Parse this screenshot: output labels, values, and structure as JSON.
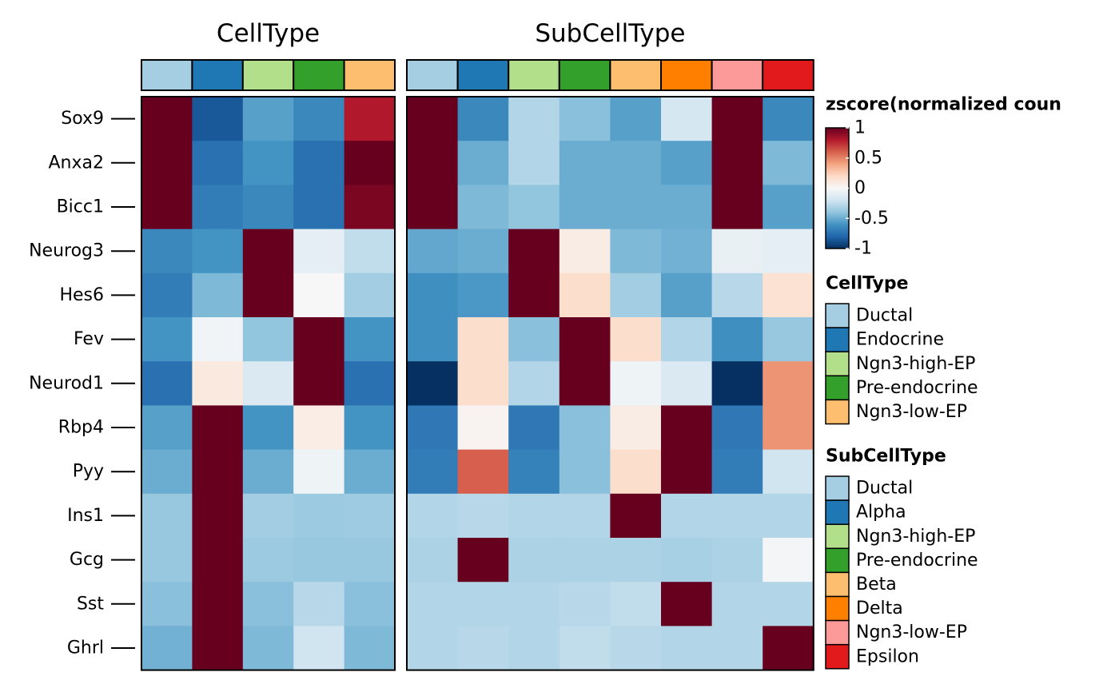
{
  "chart_data": {
    "type": "heatmap",
    "genes": [
      "Sox9",
      "Anxa2",
      "Bicc1",
      "Neurog3",
      "Hes6",
      "Fev",
      "Neurod1",
      "Rbp4",
      "Pyy",
      "Ins1",
      "Gcg",
      "Sst",
      "Ghrl"
    ],
    "value_range": [
      -1,
      1
    ],
    "colormap": [
      "#053061",
      "#2166ac",
      "#4393c3",
      "#92c5de",
      "#d1e5f0",
      "#f7f7f7",
      "#fddbc7",
      "#f4a582",
      "#d6604d",
      "#b2182b",
      "#67001f"
    ],
    "panels": [
      {
        "title": "CellType",
        "columns": [
          "Ductal",
          "Endocrine",
          "Ngn3-high-EP",
          "Pre-endocrine",
          "Ngn3-low-EP"
        ],
        "column_colors": [
          "#a6cee3",
          "#1f78b4",
          "#b2df8a",
          "#33a02c",
          "#fdbf6f"
        ],
        "values": [
          [
            1.0,
            -0.85,
            -0.55,
            -0.65,
            0.8
          ],
          [
            1.0,
            -0.75,
            -0.6,
            -0.75,
            1.0
          ],
          [
            1.0,
            -0.7,
            -0.65,
            -0.75,
            0.95
          ],
          [
            -0.65,
            -0.6,
            1.0,
            -0.1,
            -0.25
          ],
          [
            -0.7,
            -0.45,
            1.0,
            0.0,
            -0.35
          ],
          [
            -0.6,
            -0.03,
            -0.4,
            1.0,
            -0.6
          ],
          [
            -0.75,
            0.1,
            -0.15,
            1.0,
            -0.75
          ],
          [
            -0.55,
            1.0,
            -0.6,
            0.07,
            -0.6
          ],
          [
            -0.5,
            1.0,
            -0.5,
            -0.05,
            -0.5
          ],
          [
            -0.38,
            1.0,
            -0.35,
            -0.37,
            -0.36
          ],
          [
            -0.38,
            1.0,
            -0.37,
            -0.38,
            -0.38
          ],
          [
            -0.42,
            1.0,
            -0.42,
            -0.28,
            -0.42
          ],
          [
            -0.48,
            1.0,
            -0.45,
            -0.2,
            -0.45
          ]
        ]
      },
      {
        "title": "SubCellType",
        "columns": [
          "Ductal",
          "Alpha",
          "Ngn3-high-EP",
          "Pre-endocrine",
          "Beta",
          "Delta",
          "Ngn3-low-EP",
          "Epsilon"
        ],
        "column_colors": [
          "#a6cee3",
          "#1f78b4",
          "#b2df8a",
          "#33a02c",
          "#fdbf6f",
          "#ff7f00",
          "#fb9a99",
          "#e31a1c"
        ],
        "values": [
          [
            1.0,
            -0.65,
            -0.3,
            -0.42,
            -0.55,
            -0.18,
            1.0,
            -0.65
          ],
          [
            1.0,
            -0.5,
            -0.3,
            -0.5,
            -0.5,
            -0.55,
            1.0,
            -0.45
          ],
          [
            1.0,
            -0.45,
            -0.4,
            -0.5,
            -0.5,
            -0.5,
            1.0,
            -0.55
          ],
          [
            -0.52,
            -0.5,
            1.0,
            0.08,
            -0.45,
            -0.48,
            -0.08,
            -0.1
          ],
          [
            -0.62,
            -0.58,
            1.0,
            0.18,
            -0.35,
            -0.55,
            -0.28,
            0.15
          ],
          [
            -0.62,
            0.18,
            -0.42,
            1.0,
            0.18,
            -0.3,
            -0.62,
            -0.38
          ],
          [
            -1.0,
            0.18,
            -0.3,
            1.0,
            -0.05,
            -0.15,
            -1.0,
            0.45
          ],
          [
            -0.72,
            0.03,
            -0.72,
            -0.42,
            0.08,
            1.0,
            -0.72,
            0.45
          ],
          [
            -0.7,
            0.6,
            -0.68,
            -0.42,
            0.18,
            1.0,
            -0.7,
            -0.2
          ],
          [
            -0.3,
            -0.28,
            -0.3,
            -0.3,
            1.0,
            -0.3,
            -0.3,
            -0.3
          ],
          [
            -0.32,
            1.0,
            -0.32,
            -0.32,
            -0.32,
            -0.33,
            -0.32,
            -0.02
          ],
          [
            -0.3,
            -0.3,
            -0.3,
            -0.28,
            -0.25,
            1.0,
            -0.3,
            -0.3
          ],
          [
            -0.3,
            -0.28,
            -0.3,
            -0.25,
            -0.28,
            -0.3,
            -0.3,
            1.0
          ]
        ]
      }
    ],
    "legend": {
      "title": "zscore(normalized coun",
      "ticks": [
        "1",
        "0.5",
        "0",
        "-0.5",
        "-1"
      ],
      "tick_values": [
        1,
        0.5,
        0,
        -0.5,
        -1
      ]
    },
    "annotation_legends": [
      {
        "title": "CellType",
        "items": [
          {
            "label": "Ductal",
            "color": "#a6cee3"
          },
          {
            "label": "Endocrine",
            "color": "#1f78b4"
          },
          {
            "label": "Ngn3-high-EP",
            "color": "#b2df8a"
          },
          {
            "label": "Pre-endocrine",
            "color": "#33a02c"
          },
          {
            "label": "Ngn3-low-EP",
            "color": "#fdbf6f"
          }
        ]
      },
      {
        "title": "SubCellType",
        "items": [
          {
            "label": "Ductal",
            "color": "#a6cee3"
          },
          {
            "label": "Alpha",
            "color": "#1f78b4"
          },
          {
            "label": "Ngn3-high-EP",
            "color": "#b2df8a"
          },
          {
            "label": "Pre-endocrine",
            "color": "#33a02c"
          },
          {
            "label": "Beta",
            "color": "#fdbf6f"
          },
          {
            "label": "Delta",
            "color": "#ff7f00"
          },
          {
            "label": "Ngn3-low-EP",
            "color": "#fb9a99"
          },
          {
            "label": "Epsilon",
            "color": "#e31a1c"
          }
        ]
      }
    ]
  }
}
